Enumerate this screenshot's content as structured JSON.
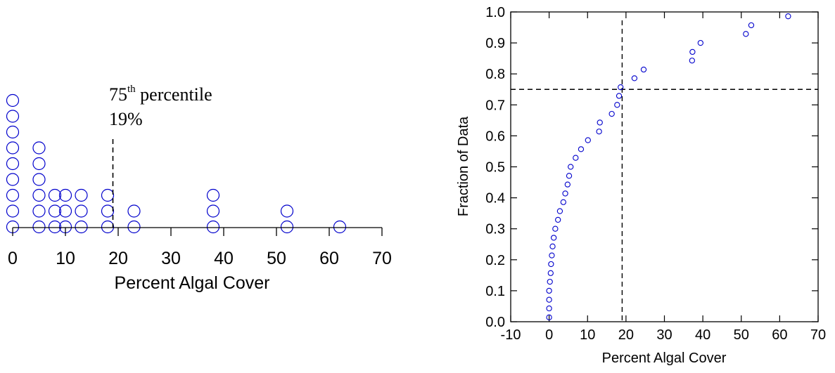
{
  "chart_data": [
    {
      "type": "scatter",
      "subtype": "dot-plot",
      "xlabel": "Percent Algal Cover",
      "ylabel": "",
      "xlim": [
        0,
        70
      ],
      "xticks": [
        0,
        10,
        20,
        30,
        40,
        50,
        60,
        70
      ],
      "marker": "open-circle",
      "marker_color": "#0000cc",
      "stacks": [
        {
          "x": 0,
          "count": 9
        },
        {
          "x": 5,
          "count": 6
        },
        {
          "x": 8,
          "count": 3
        },
        {
          "x": 10,
          "count": 3
        },
        {
          "x": 13,
          "count": 3
        },
        {
          "x": 18,
          "count": 3
        },
        {
          "x": 23,
          "count": 2
        },
        {
          "x": 38,
          "count": 3
        },
        {
          "x": 52,
          "count": 2
        },
        {
          "x": 62,
          "count": 1
        }
      ],
      "marker_line": {
        "x": 19,
        "style": "dashed"
      },
      "annotation": {
        "line1_base": "75",
        "line1_sup": "th",
        "line1_rest": " percentile",
        "line2": "19%"
      }
    },
    {
      "type": "scatter",
      "subtype": "empirical-cdf",
      "xlabel": "Percent Algal Cover",
      "ylabel": "Fraction of Data",
      "xlim": [
        -10,
        70
      ],
      "ylim": [
        0,
        1
      ],
      "xticks": [
        -10,
        0,
        10,
        20,
        30,
        40,
        50,
        60,
        70
      ],
      "yticks": [
        0.0,
        0.1,
        0.2,
        0.3,
        0.4,
        0.5,
        0.6,
        0.7,
        0.8,
        0.9,
        1.0
      ],
      "ytick_labels": [
        "0.0",
        "0.1",
        "0.2",
        "0.3",
        "0.4",
        "0.5",
        "0.6",
        "0.7",
        "0.8",
        "0.9",
        "1.0"
      ],
      "grid": false,
      "marker": "open-circle",
      "marker_color": "#0000cc",
      "points": [
        {
          "x": 0,
          "y": 0.014
        },
        {
          "x": 0,
          "y": 0.043
        },
        {
          "x": 0,
          "y": 0.071
        },
        {
          "x": 0,
          "y": 0.1
        },
        {
          "x": 0.2,
          "y": 0.129
        },
        {
          "x": 0.4,
          "y": 0.157
        },
        {
          "x": 0.5,
          "y": 0.186
        },
        {
          "x": 0.7,
          "y": 0.214
        },
        {
          "x": 0.9,
          "y": 0.243
        },
        {
          "x": 1.2,
          "y": 0.271
        },
        {
          "x": 1.6,
          "y": 0.3
        },
        {
          "x": 2.3,
          "y": 0.329
        },
        {
          "x": 2.8,
          "y": 0.357
        },
        {
          "x": 3.7,
          "y": 0.386
        },
        {
          "x": 4.2,
          "y": 0.414
        },
        {
          "x": 4.8,
          "y": 0.443
        },
        {
          "x": 5.2,
          "y": 0.471
        },
        {
          "x": 5.6,
          "y": 0.5
        },
        {
          "x": 6.9,
          "y": 0.529
        },
        {
          "x": 8.3,
          "y": 0.557
        },
        {
          "x": 10.1,
          "y": 0.586
        },
        {
          "x": 13,
          "y": 0.614
        },
        {
          "x": 13.2,
          "y": 0.643
        },
        {
          "x": 16.3,
          "y": 0.671
        },
        {
          "x": 17.7,
          "y": 0.7
        },
        {
          "x": 18.2,
          "y": 0.729
        },
        {
          "x": 18.6,
          "y": 0.757
        },
        {
          "x": 22.2,
          "y": 0.786
        },
        {
          "x": 24.6,
          "y": 0.814
        },
        {
          "x": 37.2,
          "y": 0.843
        },
        {
          "x": 37.3,
          "y": 0.871
        },
        {
          "x": 39.4,
          "y": 0.9
        },
        {
          "x": 51.2,
          "y": 0.929
        },
        {
          "x": 52.6,
          "y": 0.957
        },
        {
          "x": 62.2,
          "y": 0.986
        }
      ],
      "ref_lines": [
        {
          "orient": "vertical",
          "value": 19,
          "style": "dashed"
        },
        {
          "orient": "horizontal",
          "value": 0.75,
          "style": "dashed"
        }
      ]
    }
  ]
}
